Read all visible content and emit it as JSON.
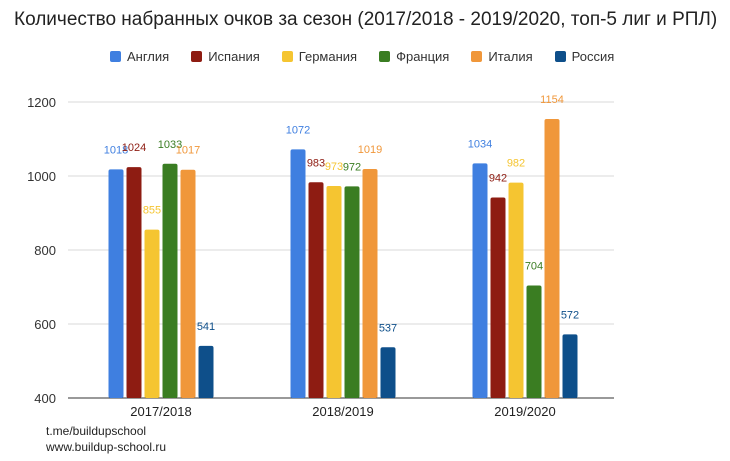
{
  "chart_data": {
    "type": "bar",
    "title": "Количество набранных очков за сезон (2017/2018 - 2019/2020, топ-5 лиг и РПЛ)",
    "categories": [
      "2017/2018",
      "2018/2019",
      "2019/2020"
    ],
    "series": [
      {
        "name": "Англия",
        "color": "#3f7fe0",
        "values": [
          1018,
          1072,
          1034
        ]
      },
      {
        "name": "Испания",
        "color": "#8e1c12",
        "values": [
          1024,
          983,
          942
        ]
      },
      {
        "name": "Германия",
        "color": "#f5c531",
        "values": [
          855,
          973,
          982
        ]
      },
      {
        "name": "Франция",
        "color": "#3a7d22",
        "values": [
          1033,
          972,
          704
        ]
      },
      {
        "name": "Италия",
        "color": "#f0973a",
        "values": [
          1017,
          1019,
          1154
        ]
      },
      {
        "name": "Россия",
        "color": "#0e4f8a",
        "values": [
          541,
          537,
          572
        ]
      }
    ],
    "ylim": [
      400,
      1200
    ],
    "yticks": [
      400,
      600,
      800,
      1000,
      1200
    ],
    "grid": true,
    "legend": "top"
  },
  "footer": {
    "line1": "t.me/buildupschool",
    "line2": "www.buildup-school.ru"
  }
}
